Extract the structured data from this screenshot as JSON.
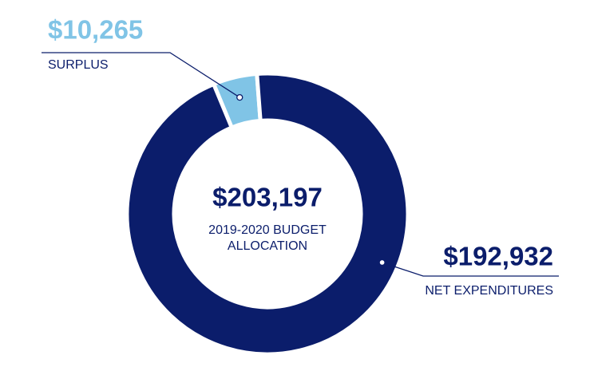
{
  "chart_data": {
    "type": "pie",
    "categories": [
      "SURPLUS",
      "NET EXPENDITURES"
    ],
    "values": [
      10265,
      192932
    ],
    "value_labels": [
      "$10,265",
      "$192,932"
    ],
    "colors": [
      "#80c4e6",
      "#0b1d6b"
    ],
    "center_title": "$203,197",
    "center_subtitle": [
      "2019-2020 BUDGET",
      "ALLOCATION"
    ],
    "donut": true
  }
}
